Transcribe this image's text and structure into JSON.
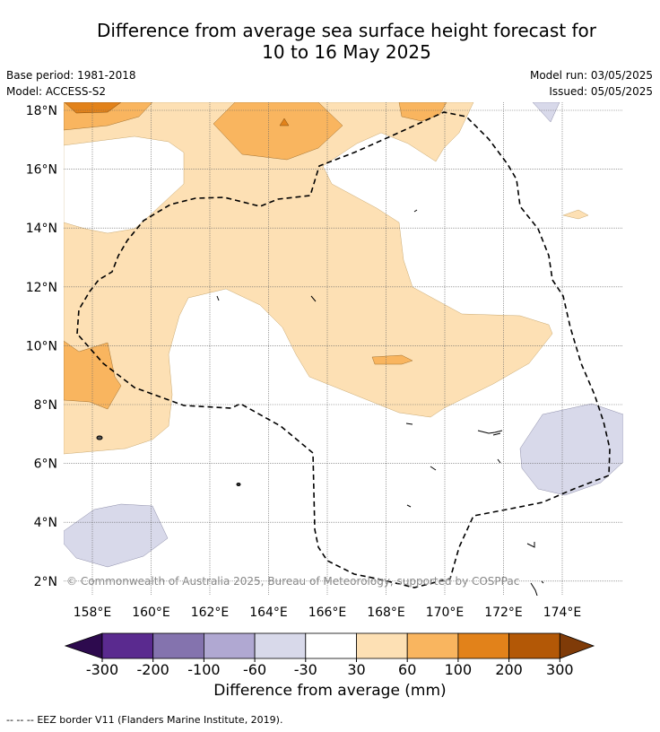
{
  "title": {
    "line1": "Difference from average sea surface height forecast for",
    "line2": "10 to 16 May 2025"
  },
  "meta": {
    "base_period": "Base period: 1981-2018",
    "model": "Model: ACCESS-S2",
    "model_run": "Model run: 03/05/2025",
    "issued": "Issued: 05/05/2025"
  },
  "map": {
    "lat_labels": [
      "18°N",
      "16°N",
      "14°N",
      "12°N",
      "10°N",
      "8°N",
      "6°N",
      "4°N",
      "2°N"
    ],
    "lon_labels": [
      "158°E",
      "160°E",
      "162°E",
      "164°E",
      "166°E",
      "168°E",
      "170°E",
      "172°E",
      "174°E"
    ],
    "lat_range": [
      1.5,
      18.5
    ],
    "lon_range": [
      157,
      176
    ],
    "copyright": "© Commonwealth of Australia 2025, Bureau of Meteorology, supported by COSPPac"
  },
  "colorbar": {
    "ticks": [
      "-300",
      "-200",
      "-100",
      "-60",
      "-30",
      "30",
      "60",
      "100",
      "200",
      "300"
    ],
    "colors": [
      "#2d0a4e",
      "#5a2a8f",
      "#8473ae",
      "#b0a8d2",
      "#d8d9ea",
      "#ffffff",
      "#fde0b4",
      "#f9b55f",
      "#e2821a",
      "#b35806",
      "#7f3b08"
    ],
    "label": "Difference from average (mm)"
  },
  "legend": {
    "eez_dash": "--  --  --",
    "eez_text": "EEZ border V11 (Flanders Marine Institute, 2019)."
  }
}
